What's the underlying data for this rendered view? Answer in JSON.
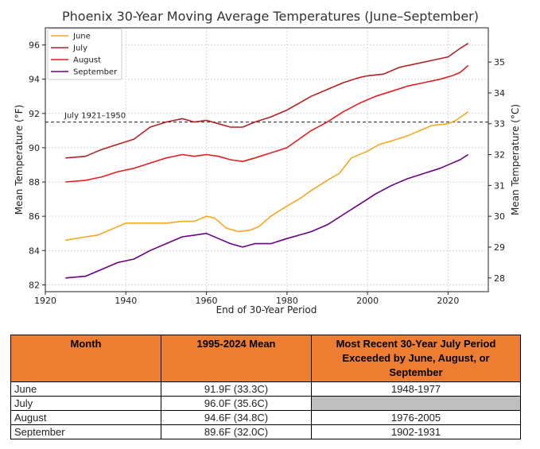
{
  "chart_data": {
    "type": "line",
    "title": "Phoenix 30-Year Moving Average Temperatures (June–September)",
    "xlabel": "End of 30-Year Period",
    "ylabel": "Mean Temperature (°F)",
    "ylabel_right": "Mean Temperature (°C)",
    "xlim": [
      1920,
      2030
    ],
    "ylim": [
      81.6,
      97.0
    ],
    "xticks": [
      "1920",
      "1940",
      "1960",
      "1980",
      "2000",
      "2020"
    ],
    "yticks": [
      "82",
      "84",
      "86",
      "88",
      "90",
      "92",
      "94",
      "96"
    ],
    "yticks_right": [
      "28",
      "29",
      "30",
      "31",
      "32",
      "33",
      "34",
      "35"
    ],
    "grid": true,
    "legend_position": "top-left",
    "reference_line": {
      "label": "July 1921–1950",
      "value": 91.5
    },
    "series": [
      {
        "name": "June",
        "color": "#f5a623",
        "points": [
          [
            1925,
            84.6
          ],
          [
            1930,
            84.8
          ],
          [
            1933,
            84.9
          ],
          [
            1936,
            85.2
          ],
          [
            1940,
            85.6
          ],
          [
            1943,
            85.6
          ],
          [
            1946,
            85.6
          ],
          [
            1950,
            85.6
          ],
          [
            1954,
            85.7
          ],
          [
            1957,
            85.7
          ],
          [
            1960,
            86.0
          ],
          [
            1962,
            85.9
          ],
          [
            1965,
            85.3
          ],
          [
            1968,
            85.1
          ],
          [
            1971,
            85.2
          ],
          [
            1973,
            85.4
          ],
          [
            1976,
            86.0
          ],
          [
            1980,
            86.6
          ],
          [
            1983,
            87.0
          ],
          [
            1986,
            87.5
          ],
          [
            1990,
            88.1
          ],
          [
            1993,
            88.5
          ],
          [
            1996,
            89.4
          ],
          [
            2000,
            89.8
          ],
          [
            2003,
            90.2
          ],
          [
            2006,
            90.4
          ],
          [
            2010,
            90.7
          ],
          [
            2013,
            91.0
          ],
          [
            2016,
            91.3
          ],
          [
            2020,
            91.4
          ],
          [
            2022,
            91.6
          ],
          [
            2025,
            92.1
          ]
        ]
      },
      {
        "name": "July",
        "color": "#b22222",
        "points": [
          [
            1925,
            89.4
          ],
          [
            1930,
            89.5
          ],
          [
            1934,
            89.9
          ],
          [
            1938,
            90.2
          ],
          [
            1942,
            90.5
          ],
          [
            1946,
            91.2
          ],
          [
            1950,
            91.5
          ],
          [
            1954,
            91.7
          ],
          [
            1957,
            91.5
          ],
          [
            1960,
            91.6
          ],
          [
            1963,
            91.4
          ],
          [
            1966,
            91.2
          ],
          [
            1969,
            91.2
          ],
          [
            1972,
            91.5
          ],
          [
            1976,
            91.8
          ],
          [
            1980,
            92.2
          ],
          [
            1983,
            92.6
          ],
          [
            1986,
            93.0
          ],
          [
            1990,
            93.4
          ],
          [
            1994,
            93.8
          ],
          [
            1998,
            94.1
          ],
          [
            2000,
            94.2
          ],
          [
            2004,
            94.3
          ],
          [
            2008,
            94.7
          ],
          [
            2012,
            94.9
          ],
          [
            2016,
            95.1
          ],
          [
            2020,
            95.3
          ],
          [
            2023,
            95.8
          ],
          [
            2025,
            96.1
          ]
        ]
      },
      {
        "name": "August",
        "color": "#e02020",
        "points": [
          [
            1925,
            88.0
          ],
          [
            1930,
            88.1
          ],
          [
            1934,
            88.3
          ],
          [
            1938,
            88.6
          ],
          [
            1942,
            88.8
          ],
          [
            1946,
            89.1
          ],
          [
            1950,
            89.4
          ],
          [
            1954,
            89.6
          ],
          [
            1957,
            89.5
          ],
          [
            1960,
            89.6
          ],
          [
            1963,
            89.5
          ],
          [
            1966,
            89.3
          ],
          [
            1969,
            89.2
          ],
          [
            1972,
            89.4
          ],
          [
            1976,
            89.7
          ],
          [
            1980,
            90.0
          ],
          [
            1983,
            90.5
          ],
          [
            1986,
            91.0
          ],
          [
            1990,
            91.5
          ],
          [
            1994,
            92.1
          ],
          [
            1998,
            92.6
          ],
          [
            2002,
            93.0
          ],
          [
            2006,
            93.3
          ],
          [
            2010,
            93.6
          ],
          [
            2014,
            93.8
          ],
          [
            2018,
            94.0
          ],
          [
            2021,
            94.2
          ],
          [
            2023,
            94.4
          ],
          [
            2025,
            94.8
          ]
        ]
      },
      {
        "name": "September",
        "color": "#6a0080",
        "points": [
          [
            1925,
            82.4
          ],
          [
            1930,
            82.5
          ],
          [
            1934,
            82.9
          ],
          [
            1938,
            83.3
          ],
          [
            1942,
            83.5
          ],
          [
            1946,
            84.0
          ],
          [
            1950,
            84.4
          ],
          [
            1954,
            84.8
          ],
          [
            1957,
            84.9
          ],
          [
            1960,
            85.0
          ],
          [
            1963,
            84.7
          ],
          [
            1966,
            84.4
          ],
          [
            1969,
            84.2
          ],
          [
            1972,
            84.4
          ],
          [
            1976,
            84.4
          ],
          [
            1980,
            84.7
          ],
          [
            1983,
            84.9
          ],
          [
            1986,
            85.1
          ],
          [
            1990,
            85.5
          ],
          [
            1994,
            86.1
          ],
          [
            1998,
            86.7
          ],
          [
            2002,
            87.3
          ],
          [
            2006,
            87.8
          ],
          [
            2010,
            88.2
          ],
          [
            2014,
            88.5
          ],
          [
            2018,
            88.8
          ],
          [
            2021,
            89.1
          ],
          [
            2023,
            89.3
          ],
          [
            2025,
            89.6
          ]
        ]
      }
    ]
  },
  "table": {
    "headers": [
      "Month",
      "1995-2024 Mean",
      "Most Recent 30-Year July Period Exceeded by June, August, or September"
    ],
    "rows": [
      [
        "June",
        "91.9F (33.3C)",
        "1948-1977"
      ],
      [
        "July",
        "96.0F (35.6C)",
        ""
      ],
      [
        "August",
        "94.6F (34.8C)",
        "1976-2005"
      ],
      [
        "September",
        "89.6F (32.0C)",
        "1902-1931"
      ]
    ]
  }
}
